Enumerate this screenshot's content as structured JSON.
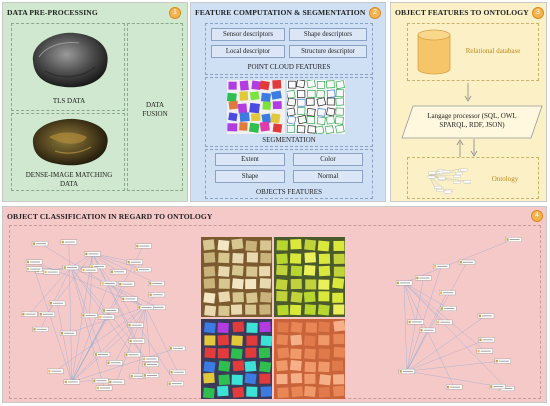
{
  "panels": {
    "data_preprocessing": {
      "title": "DATA PRE-PROCESSING",
      "badge": "1",
      "tls_label": "TLS DATA",
      "dense_label_line1": "DENSE-IMAGE MATCHING",
      "dense_label_line2": "DATA",
      "fusion_line1": "DATA",
      "fusion_line2": "FUSION"
    },
    "feature_computation": {
      "title": "FEATURE COMPUTATION & SEGMENTATION",
      "badge": "2",
      "descriptors": [
        "Sensor descriptors",
        "Shape descriptors",
        "Local descriptor",
        "Structure descriptor"
      ],
      "point_cloud_label": "POINT CLOUD FEATURES",
      "segmentation_label": "SEGMENTATION",
      "object_features": [
        "Extent",
        "Color",
        "Shape",
        "Normal"
      ],
      "objects_features_label": "OBJECTS FEATURES"
    },
    "object_features_to_ontology": {
      "title": "OBJECT FEATURES TO ONTOLOGY",
      "badge": "3",
      "db_label": "Relational database",
      "processor_line1": "Langage processor (SQL, OWL",
      "processor_line2": "SPARQL, RDF, JSON)",
      "ontology_label": "Ontology"
    },
    "object_classification": {
      "title": "OBJECT CLASSIFICATION IN REGARD TO ONTOLOGY",
      "badge": "4"
    }
  },
  "colors": {
    "panel1_bg": "#cfe8cf",
    "panel2_bg": "#cfe0f5",
    "panel3_bg": "#fbf0c6",
    "panel4_bg": "#f6c9c9",
    "badge": "#f3b451",
    "db": "#f6c56a"
  },
  "icons": [
    "arrow-down-icon",
    "arrow-up-icon",
    "database-icon"
  ]
}
